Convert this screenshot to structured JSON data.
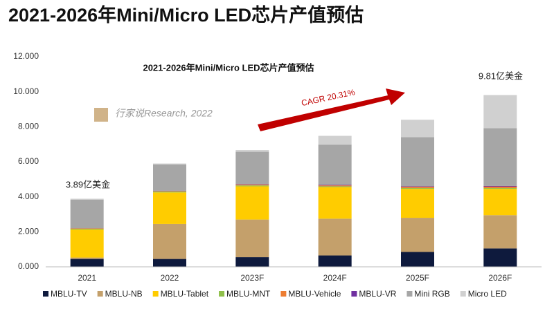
{
  "title": "2021-2026年Mini/Micro LED芯片产值预估",
  "chart_data": {
    "type": "stacked-bar",
    "title": "2021-2026年Mini/Micro LED芯片产值预估",
    "categories": [
      "2021",
      "2022",
      "2023F",
      "2024F",
      "2025F",
      "2026F"
    ],
    "series": [
      {
        "name": "MBLU-TV",
        "color": "#0e1a3d",
        "values": [
          0.45,
          0.45,
          0.55,
          0.65,
          0.85,
          1.05
        ]
      },
      {
        "name": "MBLU-NB",
        "color": "#c4a06b",
        "values": [
          0.08,
          2.0,
          2.15,
          2.1,
          1.95,
          1.9
        ]
      },
      {
        "name": "MBLU-Tablet",
        "color": "#ffcc00",
        "values": [
          1.6,
          1.8,
          1.9,
          1.8,
          1.65,
          1.5
        ]
      },
      {
        "name": "MBLU-MNT",
        "color": "#8fbf4a",
        "values": [
          0.04,
          0.05,
          0.05,
          0.05,
          0.05,
          0.05
        ]
      },
      {
        "name": "MBLU-Vehicle",
        "color": "#ed7d31",
        "values": [
          0.02,
          0.03,
          0.05,
          0.05,
          0.07,
          0.08
        ]
      },
      {
        "name": "MBLU-VR",
        "color": "#7030a0",
        "values": [
          0,
          0.02,
          0.02,
          0.03,
          0.03,
          0.04
        ]
      },
      {
        "name": "Mini RGB",
        "color": "#a6a6a6",
        "values": [
          1.65,
          1.5,
          1.85,
          2.3,
          2.8,
          3.3
        ]
      },
      {
        "name": "Micro LED",
        "color": "#d0d0d0",
        "values": [
          0.05,
          0.05,
          0.1,
          0.5,
          1.0,
          1.89
        ]
      }
    ],
    "ylim": [
      0,
      12
    ],
    "yticks": [
      {
        "value": 0,
        "label": "0.000"
      },
      {
        "value": 2,
        "label": "2.000"
      },
      {
        "value": 4,
        "label": "4.000"
      },
      {
        "value": 6,
        "label": "6.000"
      },
      {
        "value": 8,
        "label": "8.000"
      },
      {
        "value": 10,
        "label": "10.000"
      },
      {
        "value": 12,
        "label": "12.000"
      }
    ],
    "grid": false,
    "legend": "bottom",
    "annotations": [
      "3.89亿美金",
      "9.81亿美金",
      "CAGR 20.31%",
      "行家说Research, 2022"
    ]
  }
}
